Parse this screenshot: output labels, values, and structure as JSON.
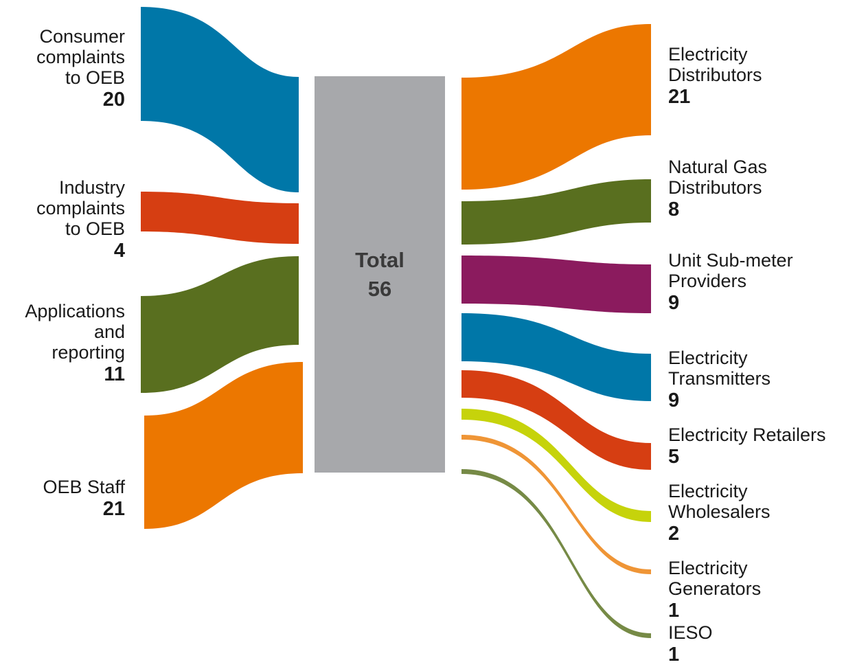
{
  "total": {
    "label": "Total",
    "value": "56"
  },
  "colors": {
    "total_bar": "#a7a8ab",
    "blue": "#0077a8",
    "red": "#d63e12",
    "green": "#596f1f",
    "orange": "#ec7700",
    "purple": "#8b1b5e",
    "lime": "#c6d30b",
    "light_orange": "#ef9536",
    "olive": "#768a46"
  },
  "sources": [
    {
      "label": "Consumer\ncomplaints\nto OEB",
      "value": "20"
    },
    {
      "label": "Industry\ncomplaints\nto OEB",
      "value": "4"
    },
    {
      "label": "Applications\nand\nreporting",
      "value": "11"
    },
    {
      "label": "OEB Staff",
      "value": "21"
    }
  ],
  "targets": [
    {
      "label": "Electricity\nDistributors",
      "value": "21"
    },
    {
      "label": "Natural Gas\nDistributors",
      "value": "8"
    },
    {
      "label": "Unit Sub-meter\nProviders",
      "value": "9"
    },
    {
      "label": "Electricity\nTransmitters",
      "value": "9"
    },
    {
      "label": "Electricity Retailers",
      "value": "5"
    },
    {
      "label": "Electricity\nWholesalers",
      "value": "2"
    },
    {
      "label": "Electricity\nGenerators",
      "value": "1"
    },
    {
      "label": "IESO",
      "value": "1"
    }
  ]
}
